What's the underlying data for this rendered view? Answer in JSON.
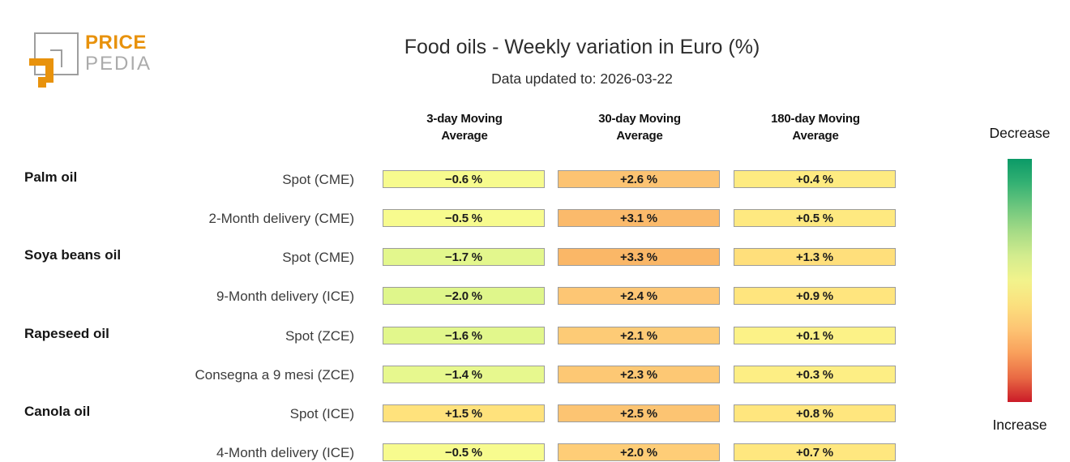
{
  "logo": {
    "line1": "PRICE",
    "line2": "PEDIA"
  },
  "colors": {
    "accent_orange": "#E8920C",
    "logo_gray": "#9E9E9E",
    "cell_border": "#9C9C9C"
  },
  "chart_data": {
    "type": "heatmap",
    "title": "Food oils - Weekly variation in Euro (%)",
    "subtitle": "Data updated to: 2026-03-22",
    "columns": [
      "3-day Moving Average",
      "30-day Moving Average",
      "180-day Moving Average"
    ],
    "unit": "%",
    "groups": [
      {
        "label": "Palm oil",
        "rows": [
          {
            "label": "Spot (CME)",
            "values": [
              -0.6,
              2.6,
              0.4
            ],
            "display": [
              "−0.6 %",
              "+2.6 %",
              "+0.4 %"
            ],
            "colors": [
              "#F7FB8E",
              "#FCC372",
              "#FEEB81"
            ]
          },
          {
            "label": "2-Month delivery (CME)",
            "values": [
              -0.5,
              3.1,
              0.5
            ],
            "display": [
              "−0.5 %",
              "+3.1 %",
              "+0.5 %"
            ],
            "colors": [
              "#F7FB8E",
              "#FBBA6B",
              "#FEE980"
            ]
          }
        ]
      },
      {
        "label": "Soya beans oil",
        "rows": [
          {
            "label": "Spot (CME)",
            "values": [
              -1.7,
              3.3,
              1.3
            ],
            "display": [
              "−1.7 %",
              "+3.3 %",
              "+1.3 %"
            ],
            "colors": [
              "#E3F78D",
              "#FAB767",
              "#FFDF7B"
            ]
          },
          {
            "label": "9-Month delivery (ICE)",
            "values": [
              -2.0,
              2.4,
              0.9
            ],
            "display": [
              "−2.0 %",
              "+2.4 %",
              "+0.9 %"
            ],
            "colors": [
              "#DFF68B",
              "#FDC674",
              "#FFE57E"
            ]
          }
        ]
      },
      {
        "label": "Rapeseed oil",
        "rows": [
          {
            "label": "Spot (ZCE)",
            "values": [
              -1.6,
              2.1,
              0.1
            ],
            "display": [
              "−1.6 %",
              "+2.1 %",
              "+0.1 %"
            ],
            "colors": [
              "#E2F78C",
              "#FDCB76",
              "#FCF287"
            ]
          },
          {
            "label": "Consegna a 9 mesi (ZCE)",
            "values": [
              -1.4,
              2.3,
              0.3
            ],
            "display": [
              "−1.4 %",
              "+2.3 %",
              "+0.3 %"
            ],
            "colors": [
              "#E7F88E",
              "#FDC874",
              "#FDEE84"
            ]
          }
        ]
      },
      {
        "label": "Canola oil",
        "rows": [
          {
            "label": "Spot (ICE)",
            "values": [
              1.5,
              2.5,
              0.8
            ],
            "display": [
              "+1.5 %",
              "+2.5 %",
              "+0.8 %"
            ],
            "colors": [
              "#FFE27C",
              "#FCC472",
              "#FFE67E"
            ]
          },
          {
            "label": "4-Month delivery (ICE)",
            "values": [
              -0.5,
              2.0,
              0.7
            ],
            "display": [
              "−0.5 %",
              "+2.0 %",
              "+0.7 %"
            ],
            "colors": [
              "#F7FB8E",
              "#FECD77",
              "#FFE77F"
            ]
          }
        ]
      }
    ],
    "legend": {
      "top_label": "Decrease",
      "bottom_label": "Increase",
      "gradient_top_to_bottom": [
        "#0B9A67",
        "#34B173",
        "#6FC77E",
        "#A6DB86",
        "#D3EC8E",
        "#F2F38C",
        "#FBE07E",
        "#FDC473",
        "#F99F5B",
        "#E96A44",
        "#CB1B28"
      ]
    },
    "layout": {
      "legend_position": "right",
      "grid": false
    }
  }
}
